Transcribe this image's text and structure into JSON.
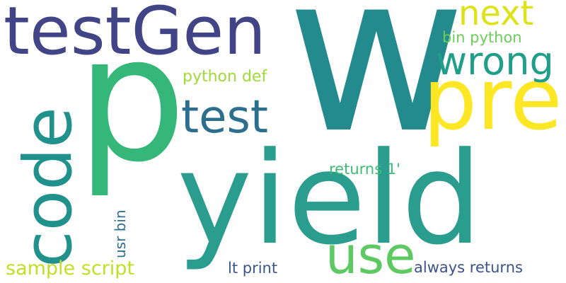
{
  "words": [
    {
      "id": "w",
      "text": "w",
      "color": "#238a8d"
    },
    {
      "id": "p",
      "text": "p",
      "color": "#35b779"
    },
    {
      "id": "yield",
      "text": "yield",
      "color": "#2a9d8f"
    },
    {
      "id": "testGen",
      "text": "testGen",
      "color": "#414487"
    },
    {
      "id": "pre",
      "text": "pre",
      "color": "#fde725"
    },
    {
      "id": "code",
      "text": "code",
      "color": "#21918c"
    },
    {
      "id": "test",
      "text": "test",
      "color": "#2c6e8e"
    },
    {
      "id": "wrong",
      "text": "wrong",
      "color": "#1f9e89"
    },
    {
      "id": "next",
      "text": "next",
      "color": "#dde318"
    },
    {
      "id": "use",
      "text": "use",
      "color": "#5ec962"
    },
    {
      "id": "bin-python",
      "text": "bin python",
      "color": "#6ccd5a"
    },
    {
      "id": "python-def",
      "text": "python def",
      "color": "#a0da39"
    },
    {
      "id": "returns-1",
      "text": "returns 1'",
      "color": "#3fbc73"
    },
    {
      "id": "usr-bin",
      "text": "usr bin",
      "color": "#2e6f8e"
    },
    {
      "id": "sample-script",
      "text": "sample script",
      "color": "#c2df23"
    },
    {
      "id": "lt-print",
      "text": "lt print",
      "color": "#39568c"
    },
    {
      "id": "always-returns",
      "text": "always returns",
      "color": "#3b528b"
    }
  ]
}
